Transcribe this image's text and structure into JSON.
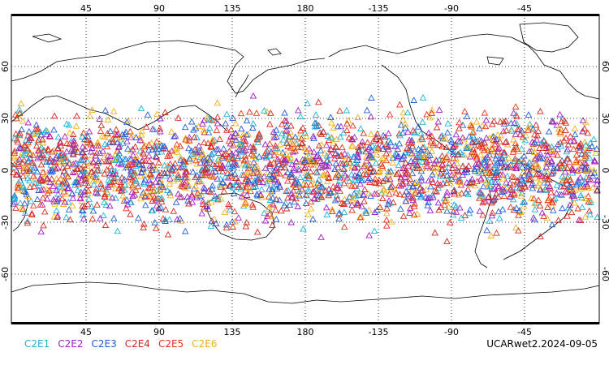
{
  "map": {
    "top_lon_labels": [
      "45",
      "90",
      "135",
      "180",
      "-135",
      "-90",
      "-45"
    ],
    "bottom_lon_labels": [
      "45",
      "90",
      "135",
      "180",
      "-135",
      "-90",
      "-45"
    ],
    "lat_labels": [
      "60",
      "30",
      "0",
      "-30",
      "-60"
    ],
    "grid": "dotted",
    "marker_shape": "triangle-outline",
    "lat_band": [
      -45,
      45
    ]
  },
  "legend": [
    {
      "label": "C2E1",
      "color": "#1fb3d6"
    },
    {
      "label": "C2E2",
      "color": "#a020c8"
    },
    {
      "label": "C2E3",
      "color": "#1f5fd6"
    },
    {
      "label": "C2E4",
      "color": "#d4281c"
    },
    {
      "label": "C2E5",
      "color": "#e8321c"
    },
    {
      "label": "C2E6",
      "color": "#f2b01e"
    }
  ],
  "footer": {
    "product_id": "UCARwet2.2024-09-05"
  }
}
